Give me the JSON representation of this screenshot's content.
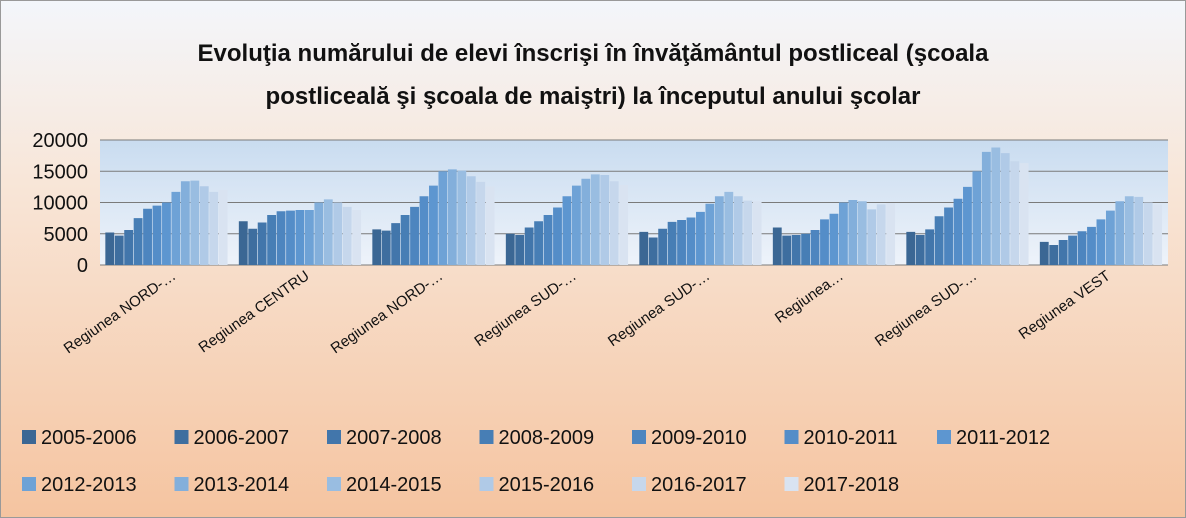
{
  "chart_data": {
    "type": "bar",
    "title": "Evoluţia numărului de elevi înscrişi în învăţământul postliceal (şcoala postliceală şi şcoala de maiştri) la începutul anului şcolar",
    "categories": [
      "Regiunea NORD-…",
      "Regiunea CENTRU",
      "Regiunea NORD-…",
      "Regiunea SUD-…",
      "Regiunea SUD-…",
      "Regiunea…",
      "Regiunea SUD-…",
      "Regiunea VEST"
    ],
    "ylim": [
      0,
      20000
    ],
    "yticks": [
      0,
      5000,
      10000,
      15000,
      20000
    ],
    "grid": true,
    "legend": "bottom",
    "series": [
      {
        "name": "2005-2006",
        "color": "#3b6794",
        "values": [
          5200,
          7000,
          5700,
          5000,
          5300,
          6000,
          5300,
          3700
        ]
      },
      {
        "name": "2006-2007",
        "color": "#3e6e9f",
        "values": [
          4700,
          5800,
          5500,
          4800,
          4400,
          4700,
          4800,
          3200
        ]
      },
      {
        "name": "2007-2008",
        "color": "#4276ab",
        "values": [
          5600,
          6800,
          6700,
          6000,
          5800,
          4800,
          5700,
          4000
        ]
      },
      {
        "name": "2008-2009",
        "color": "#477eb5",
        "values": [
          7500,
          8000,
          8000,
          7000,
          6900,
          5000,
          7800,
          4700
        ]
      },
      {
        "name": "2009-2010",
        "color": "#4d85bf",
        "values": [
          9000,
          8600,
          9300,
          8000,
          7200,
          5600,
          9200,
          5400
        ]
      },
      {
        "name": "2010-2011",
        "color": "#548dc8",
        "values": [
          9500,
          8700,
          11000,
          9200,
          7600,
          7300,
          10600,
          6100
        ]
      },
      {
        "name": "2011-2012",
        "color": "#5d96d0",
        "values": [
          10000,
          8800,
          12700,
          11000,
          8500,
          8200,
          12500,
          7300
        ]
      },
      {
        "name": "2012-2013",
        "color": "#6ea2d6",
        "values": [
          11700,
          8800,
          15000,
          12700,
          9800,
          10000,
          15000,
          8700
        ]
      },
      {
        "name": "2013-2014",
        "color": "#83afdb",
        "values": [
          13400,
          10000,
          15300,
          13800,
          11000,
          10400,
          18100,
          10200
        ]
      },
      {
        "name": "2014-2015",
        "color": "#99bde1",
        "values": [
          13500,
          10500,
          15100,
          14500,
          11700,
          10200,
          18800,
          11000
        ]
      },
      {
        "name": "2015-2016",
        "color": "#b0cae7",
        "values": [
          12600,
          10000,
          14200,
          14400,
          11000,
          8900,
          17900,
          10900
        ]
      },
      {
        "name": "2016-2017",
        "color": "#c6d7ec",
        "values": [
          11700,
          9300,
          13300,
          13400,
          10300,
          9700,
          16600,
          10000
        ]
      },
      {
        "name": "2017-2018",
        "color": "#d9e3f1",
        "values": [
          12000,
          8800,
          12600,
          12800,
          10200,
          9900,
          16300,
          9700
        ]
      }
    ]
  }
}
